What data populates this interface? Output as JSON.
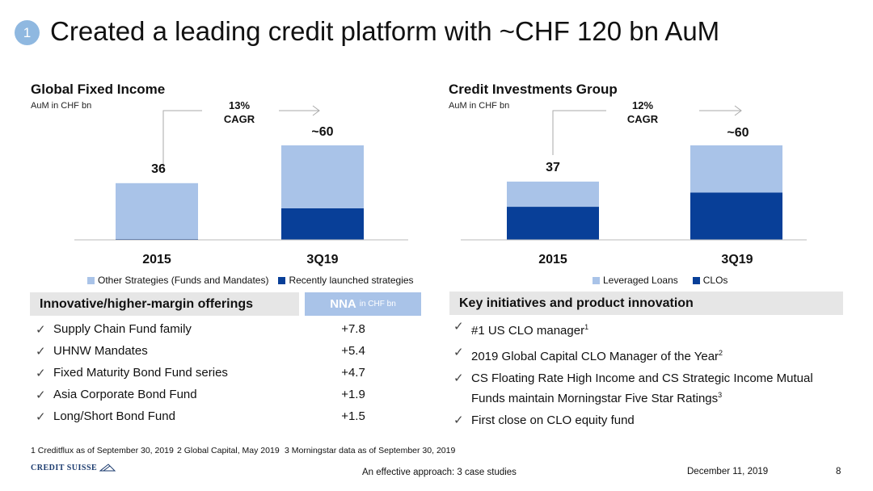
{
  "header": {
    "badge": "1",
    "title": "Created a leading credit platform with ~CHF 120 bn AuM"
  },
  "colors": {
    "light": "#a9c3e8",
    "dark": "#083f98",
    "grey_band": "#e6e6e6"
  },
  "chart_data": [
    {
      "type": "bar",
      "title": "Global Fixed Income",
      "ylabel": "AuM in CHF bn",
      "categories": [
        "2015",
        "3Q19"
      ],
      "totals": [
        "36",
        "~60"
      ],
      "series": [
        {
          "name": "Other Strategies (Funds and Mandates)",
          "values": [
            35.5,
            40
          ]
        },
        {
          "name": "Recently launched strategies",
          "values": [
            0.5,
            20
          ]
        }
      ],
      "annotation": {
        "cagr": "13%",
        "label": "CAGR"
      }
    },
    {
      "type": "bar",
      "title": "Credit Investments Group",
      "ylabel": "AuM in CHF bn",
      "categories": [
        "2015",
        "3Q19"
      ],
      "totals": [
        "37",
        "~60"
      ],
      "series": [
        {
          "name": "Leveraged Loans",
          "values": [
            16,
            30
          ]
        },
        {
          "name": "CLOs",
          "values": [
            21,
            30
          ]
        }
      ],
      "annotation": {
        "cagr": "12%",
        "label": "CAGR"
      }
    }
  ],
  "left_table": {
    "heading": "Innovative/higher-margin offerings",
    "nna_heading": "NNA",
    "nna_unit": "in CHF bn",
    "rows": [
      {
        "label": "Supply Chain Fund family",
        "value": "+7.8"
      },
      {
        "label": "UHNW Mandates",
        "value": "+5.4"
      },
      {
        "label": "Fixed Maturity Bond Fund series",
        "value": "+4.7"
      },
      {
        "label": "Asia Corporate Bond Fund",
        "value": "+1.9"
      },
      {
        "label": "Long/Short Bond Fund",
        "value": "+1.5"
      }
    ]
  },
  "right_list": {
    "heading": "Key initiatives and product innovation",
    "items": [
      {
        "text": "#1 US CLO manager",
        "sup": "1"
      },
      {
        "text": "2019 Global Capital CLO Manager of the Year",
        "sup": "2"
      },
      {
        "text": "CS Floating Rate High Income and CS Strategic Income Mutual Funds maintain Morningstar Five Star Ratings",
        "sup": "3"
      },
      {
        "text": "First close on CLO equity fund",
        "sup": ""
      }
    ]
  },
  "footnotes": [
    "1 Creditflux as of September 30, 2019",
    "2 Global Capital, May 2019",
    "3 Morningstar data as of September 30, 2019"
  ],
  "footer": {
    "logo": "CREDIT SUISSE",
    "center": "An effective approach: 3 case studies",
    "date": "December 11, 2019",
    "page": "8"
  }
}
